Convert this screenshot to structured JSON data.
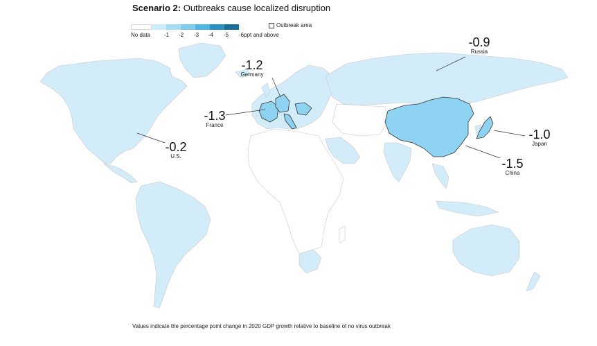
{
  "title": {
    "bold": "Scenario 2:",
    "rest": " Outbreaks cause localized disruption"
  },
  "legend": {
    "no_data": "No data",
    "bins": [
      "-1",
      "-2",
      "-3",
      "-4",
      "-5",
      "-6ppt and above"
    ],
    "bin_colors": [
      "#cdebf8",
      "#a6dcf3",
      "#7ecdef",
      "#4fb6e4",
      "#2b90c4",
      "#1a6e9c"
    ],
    "outbreak_label": "Outbreak area"
  },
  "colors": {
    "ocean": "#ffffff",
    "land_light": "#d2ecf9",
    "land_none": "#ffffff",
    "outbreak": "#8fd3f2",
    "border": "#c7c7c7"
  },
  "callouts": {
    "russia": {
      "value": "-0.9",
      "name": "Russia"
    },
    "germany": {
      "value": "-1.2",
      "name": "Germany"
    },
    "france": {
      "value": "-1.3",
      "name": "France"
    },
    "us": {
      "value": "-0.2",
      "name": "U.S."
    },
    "japan": {
      "value": "-1.0",
      "name": "Japan"
    },
    "china": {
      "value": "-1.5",
      "name": "China"
    }
  },
  "footnote": "Values indicate the percentage point change in 2020 GDP growth relative to baseline of no virus outbreak"
}
